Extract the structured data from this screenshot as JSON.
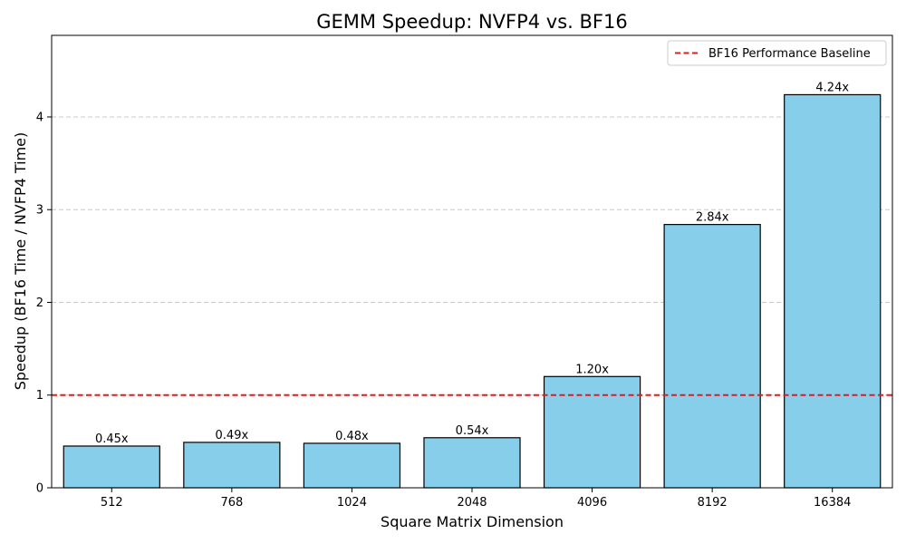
{
  "chart_data": {
    "type": "bar",
    "title": "GEMM Speedup: NVFP4 vs. BF16",
    "xlabel": "Square Matrix Dimension",
    "ylabel": "Speedup (BF16 Time / NVFP4 Time)",
    "categories": [
      "512",
      "768",
      "1024",
      "2048",
      "4096",
      "8192",
      "16384"
    ],
    "values": [
      0.45,
      0.49,
      0.48,
      0.54,
      1.2,
      2.84,
      4.24
    ],
    "value_labels": [
      "0.45x",
      "0.49x",
      "0.48x",
      "0.54x",
      "1.20x",
      "2.84x",
      "4.24x"
    ],
    "ylim": [
      0,
      4.88
    ],
    "yticks": [
      0,
      1,
      2,
      3,
      4
    ],
    "grid": "y-dashed",
    "bar_color": "#87CEEB",
    "bar_edge_color": "#000000",
    "reference_line": {
      "y": 1.0,
      "label": "BF16 Performance Baseline",
      "color": "#e41a1c",
      "style": "dashed"
    },
    "legend_position": "top-right"
  }
}
